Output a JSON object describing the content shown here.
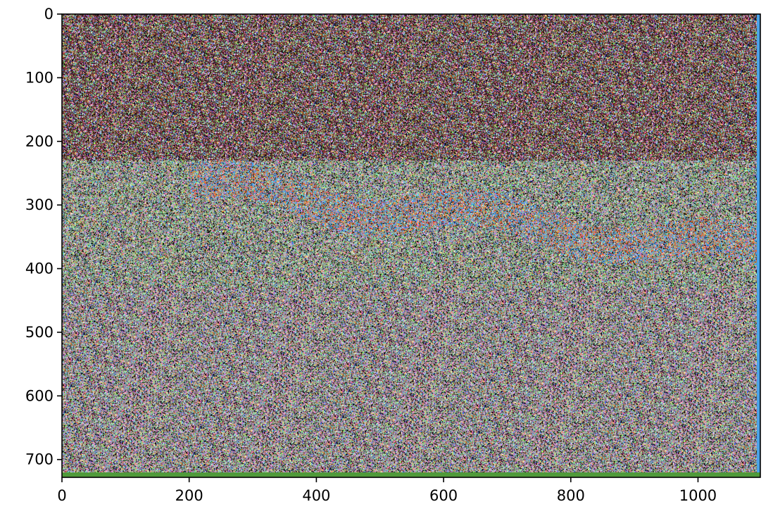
{
  "chart_data": {
    "type": "heatmap",
    "title": "",
    "xlabel": "",
    "ylabel": "",
    "xlim": [
      0,
      1098
    ],
    "ylim": [
      728,
      0
    ],
    "y_inverted": true,
    "grid": false,
    "legend": "none",
    "x_ticks": [
      0,
      200,
      400,
      600,
      800,
      1000
    ],
    "x_tick_labels": [
      "0",
      "200",
      "400",
      "600",
      "800",
      "1000"
    ],
    "y_ticks": [
      0,
      100,
      200,
      300,
      400,
      500,
      600,
      700
    ],
    "y_tick_labels": [
      "0",
      "100",
      "200",
      "300",
      "400",
      "500",
      "600",
      "700"
    ],
    "image_content": "noisy multicolor pixel image",
    "regions": [
      {
        "label": "dark reddish-brown noisy band",
        "x": [
          0,
          1098
        ],
        "y": [
          0,
          230
        ],
        "color": "#6a3a3a"
      },
      {
        "label": "grey-green textured band",
        "x": [
          0,
          1098
        ],
        "y": [
          230,
          430
        ],
        "color": "#8f9a86"
      },
      {
        "label": "blue/orange streak",
        "x": [
          220,
          1080
        ],
        "y": [
          240,
          420
        ],
        "color": "#3aa6ff"
      },
      {
        "label": "mixed noisy lower area",
        "x": [
          0,
          1098
        ],
        "y": [
          430,
          728
        ],
        "color": "#9a8c90"
      }
    ],
    "edge_strips": [
      {
        "side": "right",
        "color": "#4aa3e8"
      },
      {
        "side": "bottom",
        "color": "#4f9a3a"
      }
    ]
  },
  "colors": {
    "noise_palette": [
      "#ffffff",
      "#000000",
      "#ff66ff",
      "#66ccff",
      "#ffff66",
      "#ff6633",
      "#66ff66",
      "#3366ff",
      "#ff99cc",
      "#99ffcc"
    ],
    "streak_blue": "#3aa6ff",
    "streak_orange": "#ff5a1f",
    "band_top": "#6a3a3a",
    "band_mid": "#8f9a86",
    "band_low": "#9a8c90"
  }
}
